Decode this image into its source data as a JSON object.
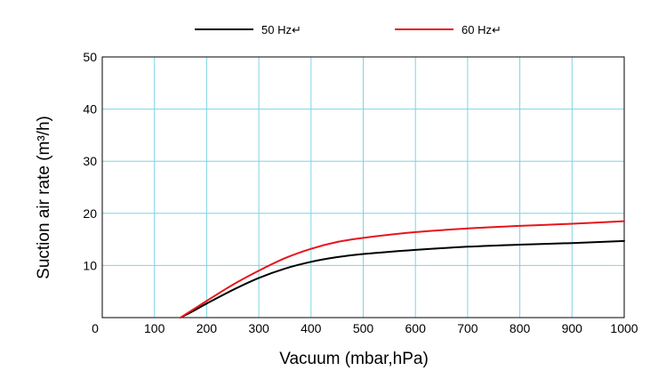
{
  "chart_data": {
    "type": "line",
    "xlabel": "Vacuum (mbar,hPa)",
    "ylabel": "Suction air rate (m³/h)",
    "xlim": [
      0,
      1000
    ],
    "ylim": [
      0,
      50
    ],
    "x_ticks": [
      0,
      100,
      200,
      300,
      400,
      500,
      600,
      700,
      800,
      900,
      1000
    ],
    "y_ticks": [
      10,
      20,
      30,
      40,
      50
    ],
    "grid": true,
    "grid_color": "#7fd3e6",
    "legend_position": "top",
    "series": [
      {
        "name": "50 Hz↵",
        "color": "#000000",
        "x": [
          150,
          175,
          200,
          250,
          300,
          350,
          400,
          450,
          500,
          600,
          700,
          800,
          900,
          1000
        ],
        "y": [
          0,
          1.3,
          2.7,
          5.3,
          7.6,
          9.4,
          10.7,
          11.6,
          12.2,
          13.0,
          13.6,
          14.0,
          14.3,
          14.7
        ]
      },
      {
        "name": "60 Hz↵",
        "color": "#e8141b",
        "x": [
          150,
          175,
          200,
          250,
          300,
          350,
          400,
          450,
          500,
          600,
          700,
          800,
          900,
          1000
        ],
        "y": [
          0,
          1.6,
          3.2,
          6.3,
          9.0,
          11.4,
          13.2,
          14.5,
          15.3,
          16.4,
          17.1,
          17.6,
          18.0,
          18.5
        ]
      }
    ]
  }
}
